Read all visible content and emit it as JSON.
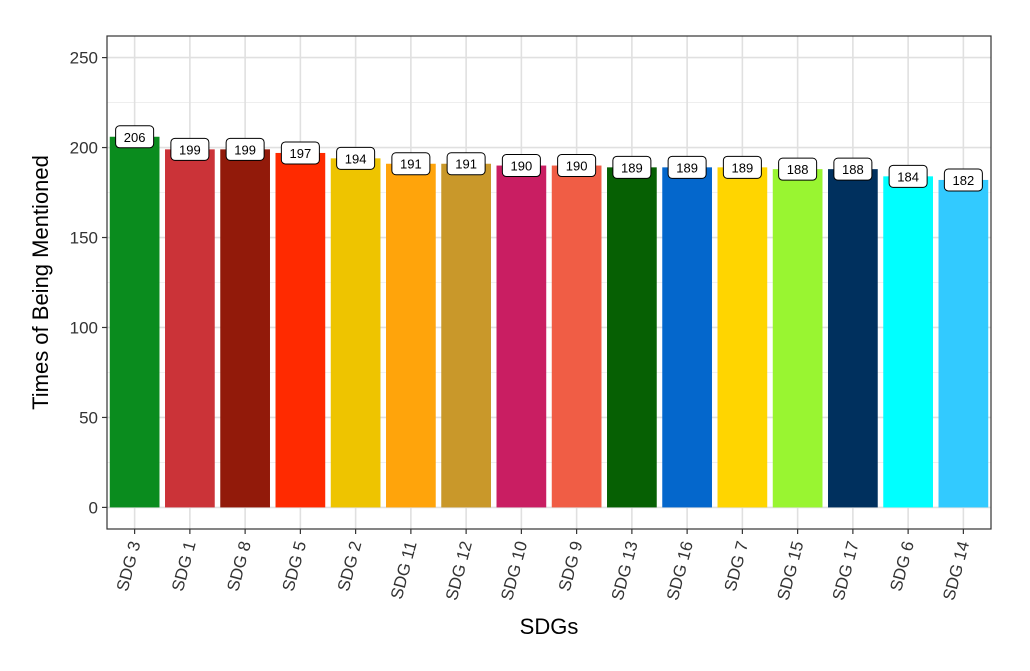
{
  "chart_data": {
    "type": "bar",
    "title": "",
    "xlabel": "SDGs",
    "ylabel": "Times of Being Mentioned",
    "ylim": [
      -12,
      262
    ],
    "yticks": [
      0,
      50,
      100,
      150,
      200,
      250
    ],
    "grid": true,
    "legend": "none",
    "categories": [
      "SDG 3",
      "SDG 1",
      "SDG 8",
      "SDG 5",
      "SDG 2",
      "SDG 11",
      "SDG 12",
      "SDG 10",
      "SDG 9",
      "SDG 13",
      "SDG 16",
      "SDG 7",
      "SDG 15",
      "SDG 17",
      "SDG 6",
      "SDG 14"
    ],
    "values": [
      206,
      199,
      199,
      197,
      194,
      191,
      191,
      190,
      190,
      189,
      189,
      189,
      188,
      188,
      184,
      182
    ],
    "colors": [
      "#0A8C1E",
      "#CB3338",
      "#921A0A",
      "#FF2A00",
      "#EEC400",
      "#FFA40B",
      "#C9982A",
      "#C91E62",
      "#F05D45",
      "#066003",
      "#0467CC",
      "#FFD500",
      "#99F531",
      "#00305E",
      "#00FFFF",
      "#32CAFF"
    ]
  }
}
